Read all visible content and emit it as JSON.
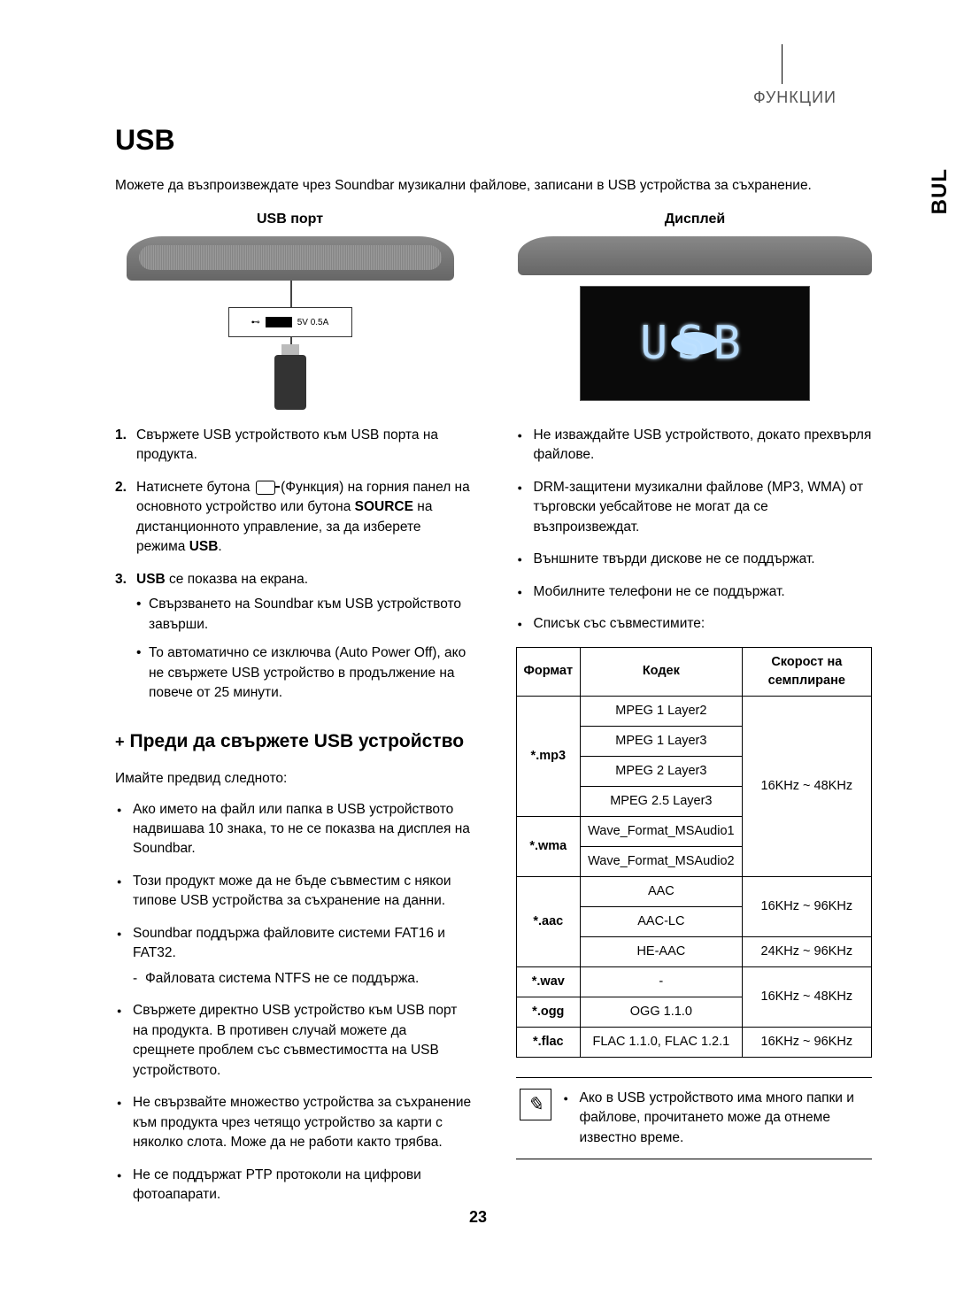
{
  "meta": {
    "section_header": "ФУНКЦИИ",
    "side_tab": "BUL",
    "page_number": "23"
  },
  "title": "USB",
  "intro": "Можете да възпроизвеждате чрез Soundbar музикални файлове, записани в USB устройства за съхранение.",
  "figures": {
    "left_label": "USB порт",
    "port_text": "5V 0.5A",
    "right_label": "Дисплей",
    "display_text": "USB"
  },
  "steps": [
    {
      "num": "1.",
      "text_a": "Свържете USB устройството към USB порта на продукта."
    },
    {
      "num": "2.",
      "text_a": "Натиснете бутона ",
      "text_b": " (Функция) на горния панел на основното устройство или бутона ",
      "bold1": "SOURCE",
      "text_c": " на дистанционното управление, за да изберете режима ",
      "bold2": "USB",
      "text_d": "."
    },
    {
      "num": "3.",
      "bold_lead": "USB",
      "text_a": " се показва на екрана.",
      "subs": [
        "Свързването на Soundbar към USB устройството завърши.",
        "То автоматично се изключва (Auto Power Off), ако не свържете USB устройство в продължение на повече от 25 минути."
      ]
    }
  ],
  "subhead": "Преди да свържете USB устройство",
  "subhead_intro": "Имайте предвид следното:",
  "left_bullets": [
    {
      "t": "Ако името на файл или папка в USB устройството надвишава 10 знака, то не се показва на дисплея на Soundbar."
    },
    {
      "t": "Този продукт може да не бъде съвместим с някои типове USB устройства за съхранение на данни."
    },
    {
      "t": "Soundbar поддържа файловите системи FAT16 и FAT32.",
      "dash": [
        "Файловата система NTFS не се поддържа."
      ]
    },
    {
      "t": "Свържете директно USB устройство към USB порт на продукта. В противен случай можете да срещнете проблем със съвместимостта на USB устройството."
    },
    {
      "t": "Не свързвайте множество устройства за съхранение към продукта чрез четящо устройство за карти с няколко слота. Може да не работи както трябва."
    },
    {
      "t": "Не се поддържат PTP протоколи на цифрови фотоапарати."
    }
  ],
  "right_bullets": [
    {
      "t": "Не изваждайте USB устройството, докато прехвърля файлове."
    },
    {
      "t": "DRM-защитени музикални файлове (MP3, WMA) от търговски уебсайтове не могат да се възпроизвеждат."
    },
    {
      "t": "Външните твърди дискове не се поддържат."
    },
    {
      "t": "Мобилните телефони не се поддържат."
    },
    {
      "t": "Списък със съвместимите:"
    }
  ],
  "table": {
    "headers": [
      "Формат",
      "Кодек",
      "Скорост на семплиране"
    ],
    "groups": [
      {
        "format": "*.mp3",
        "rows": [
          {
            "codec": "MPEG 1 Layer2",
            "rate": null
          },
          {
            "codec": "MPEG 1 Layer3",
            "rate": null
          },
          {
            "codec": "MPEG 2 Layer3",
            "rate": null
          },
          {
            "codec": "MPEG 2.5 Layer3",
            "rate": null
          }
        ]
      },
      {
        "format": "*.wma",
        "rows": [
          {
            "codec": "Wave_Format_MSAudio1",
            "rate": null
          },
          {
            "codec": "Wave_Format_MSAudio2",
            "rate": null
          }
        ]
      },
      {
        "format": "*.aac",
        "rows": [
          {
            "codec": "AAC",
            "rate": null
          },
          {
            "codec": "AAC-LC",
            "rate": null
          },
          {
            "codec": "HE-AAC",
            "rate": "24KHz ~ 96KHz"
          }
        ]
      },
      {
        "format": "*.wav",
        "rows": [
          {
            "codec": "-",
            "rate": null
          }
        ]
      },
      {
        "format": "*.ogg",
        "rows": [
          {
            "codec": "OGG 1.1.0",
            "rate": null
          }
        ]
      },
      {
        "format": "*.flac",
        "rows": [
          {
            "codec": "FLAC 1.1.0, FLAC 1.2.1",
            "rate": "16KHz ~ 96KHz"
          }
        ]
      }
    ],
    "rate_group1": "16KHz ~ 48KHz",
    "rate_group2": "16KHz ~ 96KHz",
    "rate_group3": "16KHz ~ 48KHz"
  },
  "note": "Ако в USB устройството има много папки и файлове, прочитането може да отнеме известно време."
}
